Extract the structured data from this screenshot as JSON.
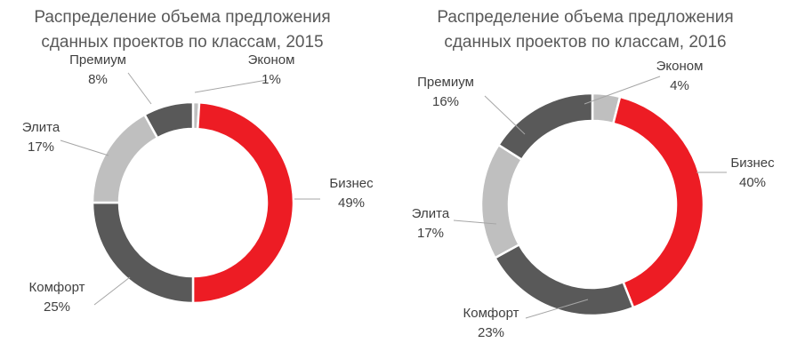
{
  "colors": {
    "Эконом": "#bfbfbf",
    "Бизнес": "#ed1c24",
    "Комфорт": "#595959",
    "Элита": "#bfbfbf",
    "Премиум": "#595959",
    "leader_line": "#a6a6a6",
    "text": "#595959"
  },
  "chart_data": [
    {
      "type": "pie",
      "subtype": "donut",
      "title_lines": [
        "Распределение объема предложения",
        "сданных проектов по классам, 2015"
      ],
      "slices": [
        {
          "name": "Эконом",
          "value": 1,
          "label": "1%"
        },
        {
          "name": "Бизнес",
          "value": 49,
          "label": "49%"
        },
        {
          "name": "Комфорт",
          "value": 25,
          "label": "25%"
        },
        {
          "name": "Элита",
          "value": 17,
          "label": "17%"
        },
        {
          "name": "Премиум",
          "value": 8,
          "label": "8%"
        }
      ]
    },
    {
      "type": "pie",
      "subtype": "donut",
      "title_lines": [
        "Распределение объема предложения",
        "сданных проектов по классам, 2016"
      ],
      "slices": [
        {
          "name": "Эконом",
          "value": 4,
          "label": "4%"
        },
        {
          "name": "Бизнес",
          "value": 40,
          "label": "40%"
        },
        {
          "name": "Комфорт",
          "value": 23,
          "label": "23%"
        },
        {
          "name": "Элита",
          "value": 17,
          "label": "17%"
        },
        {
          "name": "Премиум",
          "value": 16,
          "label": "16%"
        }
      ]
    }
  ]
}
